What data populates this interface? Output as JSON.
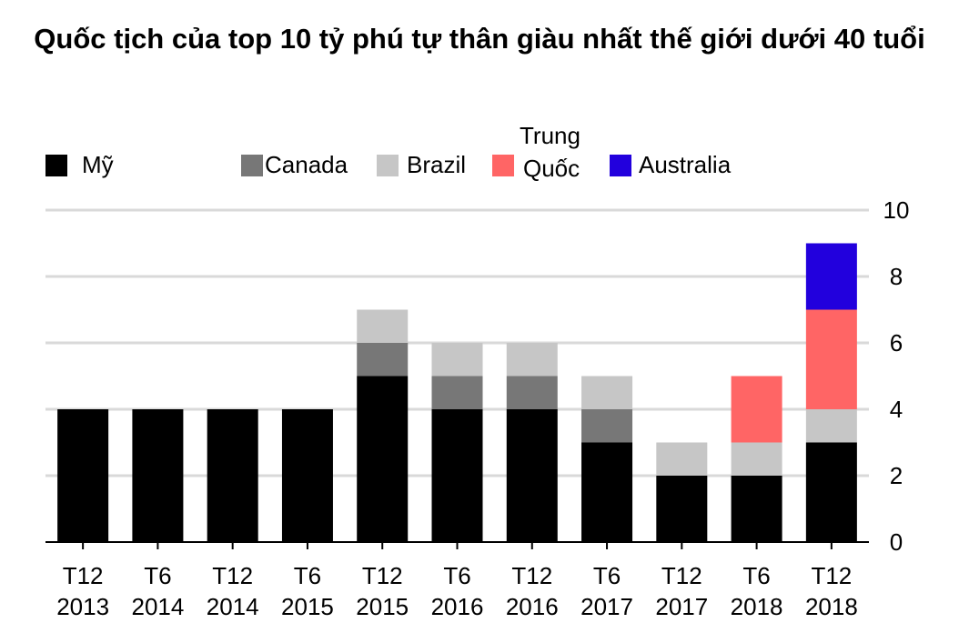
{
  "chart_data": {
    "type": "stacked-bar",
    "title": "Quốc tịch của top 10 tỷ phú tự thân giàu nhất thế giới dưới 40 tuổi",
    "categories": [
      "T12 2013",
      "T6 2014",
      "T12 2014",
      "T6 2015",
      "T12 2015",
      "T6 2016",
      "T12 2016",
      "T6 2017",
      "T12 2017",
      "T6 2018",
      "T12 2018"
    ],
    "series": [
      {
        "name": "Mỹ",
        "color": "#000000",
        "values": [
          4,
          4,
          4,
          4,
          5,
          4,
          4,
          3,
          2,
          2,
          3
        ]
      },
      {
        "name": "Canada",
        "color": "#777777",
        "values": [
          0,
          0,
          0,
          0,
          1,
          1,
          1,
          1,
          0,
          0,
          0
        ]
      },
      {
        "name": "Brazil",
        "color": "#c6c6c6",
        "values": [
          0,
          0,
          0,
          0,
          1,
          1,
          1,
          1,
          1,
          1,
          1
        ]
      },
      {
        "name": "Trung Quốc",
        "color": "#ff6565",
        "values": [
          0,
          0,
          0,
          0,
          0,
          0,
          0,
          0,
          0,
          2,
          3
        ]
      },
      {
        "name": "Australia",
        "color": "#2200dd",
        "values": [
          0,
          0,
          0,
          0,
          0,
          0,
          0,
          0,
          0,
          0,
          2
        ]
      }
    ],
    "ylim": [
      0,
      10
    ],
    "yticks": [
      0,
      2,
      4,
      6,
      8,
      10
    ],
    "grid": true,
    "legend": "top"
  }
}
